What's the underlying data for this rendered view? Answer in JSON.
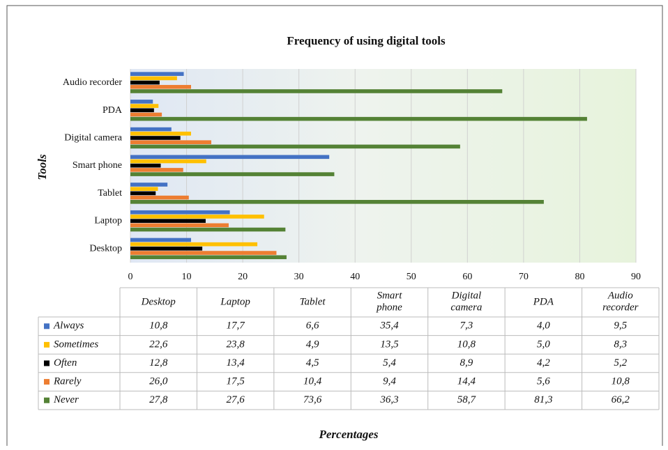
{
  "chart_data": {
    "type": "bar",
    "orientation": "horizontal",
    "title": "Frequency of using digital tools",
    "y_label": "Tools",
    "x_label": "Percentages",
    "categories": [
      "Desktop",
      "Laptop",
      "Tablet",
      "Smart phone",
      "Digital camera",
      "PDA",
      "Audio recorder"
    ],
    "series": [
      {
        "name": "Always",
        "color": "#4472c4",
        "values": [
          10.8,
          17.7,
          6.6,
          35.4,
          7.3,
          4.0,
          9.5
        ],
        "value_labels": [
          "10,8",
          "17,7",
          "6,6",
          "35,4",
          "7,3",
          "4,0",
          "9,5"
        ]
      },
      {
        "name": "Sometimes",
        "color": "#ffc000",
        "values": [
          22.6,
          23.8,
          4.9,
          13.5,
          10.8,
          5.0,
          8.3
        ],
        "value_labels": [
          "22,6",
          "23,8",
          "4,9",
          "13,5",
          "10,8",
          "5,0",
          "8,3"
        ]
      },
      {
        "name": "Often",
        "color": "#000000",
        "values": [
          12.8,
          13.4,
          4.5,
          5.4,
          8.9,
          4.2,
          5.2
        ],
        "value_labels": [
          "12,8",
          "13,4",
          "4,5",
          "5,4",
          "8,9",
          "4,2",
          "5,2"
        ]
      },
      {
        "name": "Rarely",
        "color": "#ed7d31",
        "values": [
          26.0,
          17.5,
          10.4,
          9.4,
          14.4,
          5.6,
          10.8
        ],
        "value_labels": [
          "26,0",
          "17,5",
          "10,4",
          "9,4",
          "14,4",
          "5,6",
          "10,8"
        ]
      },
      {
        "name": "Never",
        "color": "#548235",
        "values": [
          27.8,
          27.6,
          73.6,
          36.3,
          58.7,
          81.3,
          66.2
        ],
        "value_labels": [
          "27,8",
          "27,6",
          "73,6",
          "36,3",
          "58,7",
          "81,3",
          "66,2"
        ]
      }
    ],
    "xlim": [
      0,
      90
    ],
    "xticks": [
      0,
      10,
      20,
      30,
      40,
      50,
      60,
      70,
      80,
      90
    ],
    "grid": true
  }
}
